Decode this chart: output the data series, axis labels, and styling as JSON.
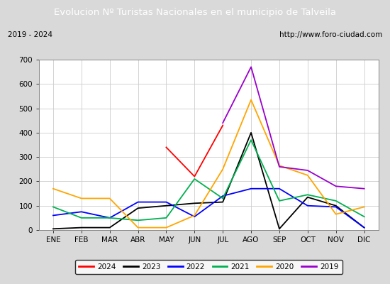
{
  "title": "Evolucion Nº Turistas Nacionales en el municipio de Talveila",
  "subtitle_left": "2019 - 2024",
  "subtitle_right": "http://www.foro-ciudad.com",
  "title_bg_color": "#4f81bd",
  "title_text_color": "#ffffff",
  "ylim": [
    0,
    700
  ],
  "yticks": [
    0,
    100,
    200,
    300,
    400,
    500,
    600,
    700
  ],
  "months": [
    "ENE",
    "FEB",
    "MAR",
    "ABR",
    "MAY",
    "JUN",
    "JUL",
    "AGO",
    "SEP",
    "OCT",
    "NOV",
    "DIC"
  ],
  "series": {
    "2024": {
      "color": "#ff0000",
      "values": [
        null,
        null,
        null,
        null,
        340,
        220,
        430,
        null,
        null,
        null,
        null,
        null
      ]
    },
    "2023": {
      "color": "#000000",
      "values": [
        5,
        10,
        10,
        90,
        100,
        110,
        115,
        400,
        5,
        135,
        100,
        10
      ]
    },
    "2022": {
      "color": "#0000ff",
      "values": [
        60,
        75,
        50,
        115,
        115,
        55,
        140,
        170,
        170,
        100,
        95,
        10
      ]
    },
    "2021": {
      "color": "#00b050",
      "values": [
        95,
        50,
        50,
        40,
        50,
        210,
        130,
        370,
        120,
        145,
        120,
        55
      ]
    },
    "2020": {
      "color": "#ffa500",
      "values": [
        170,
        130,
        130,
        10,
        10,
        60,
        250,
        535,
        265,
        225,
        65,
        95
      ]
    },
    "2019": {
      "color": "#9900cc",
      "values": [
        null,
        null,
        null,
        null,
        null,
        null,
        440,
        670,
        260,
        245,
        180,
        170
      ]
    }
  },
  "grid_color": "#cccccc",
  "plot_bg_color": "#f0f0f0",
  "inner_bg_color": "#ffffff",
  "outer_bg_color": "#d9d9d9",
  "legend_order": [
    "2024",
    "2023",
    "2022",
    "2021",
    "2020",
    "2019"
  ]
}
